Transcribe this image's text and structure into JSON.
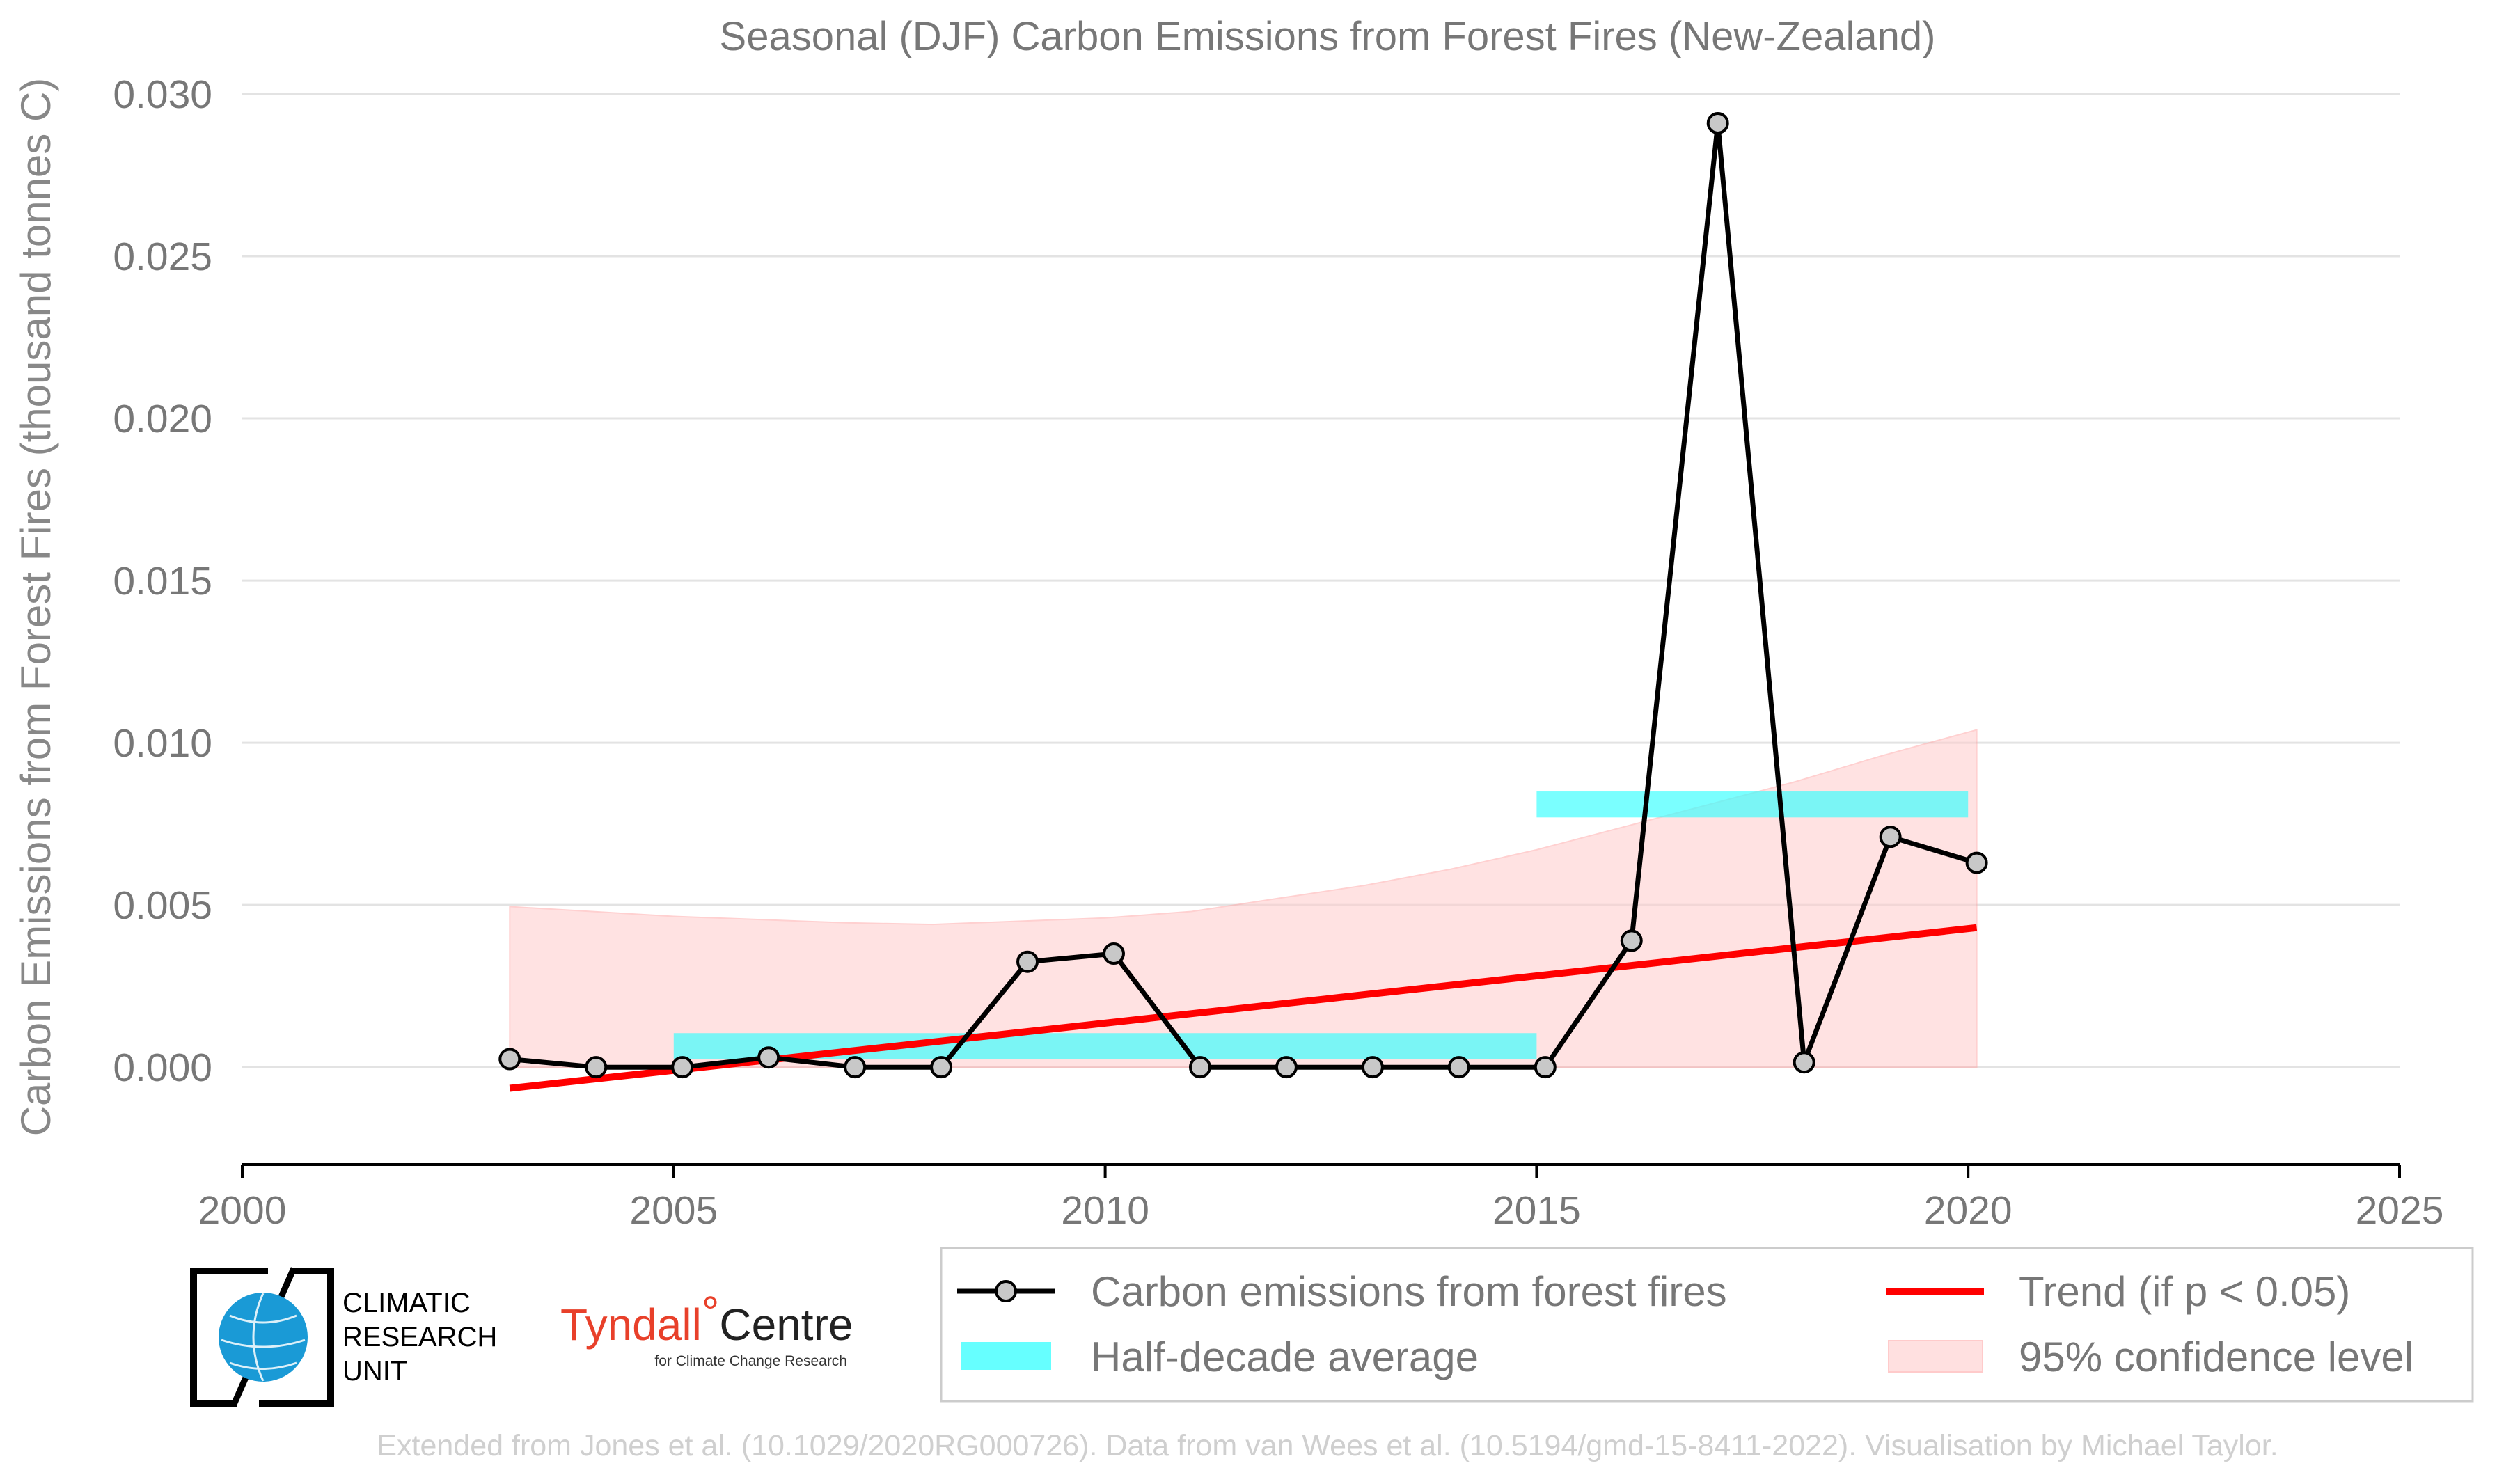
{
  "chart_data": {
    "type": "line",
    "title": "Seasonal (DJF) Carbon Emissions from Forest Fires (New-Zealand)",
    "xlabel": "",
    "ylabel": "Carbon Emissions from Forest Fires (thousand tonnes C)",
    "xlim": [
      2000,
      2025
    ],
    "ylim": [
      -0.003,
      0.03
    ],
    "x_ticks": [
      "2000",
      "2005",
      "2010",
      "2015",
      "2020",
      "2025"
    ],
    "y_ticks": [
      "0.000",
      "0.005",
      "0.010",
      "0.015",
      "0.020",
      "0.025",
      "0.030"
    ],
    "grid": "horizontal",
    "legend_position": "bottom-right",
    "series": [
      {
        "name": "Carbon emissions from forest fires",
        "type": "line-markers",
        "color": "#000000",
        "marker_fill": "#c8c8c8",
        "x": [
          2003.1,
          2004.1,
          2005.1,
          2006.1,
          2007.1,
          2008.1,
          2009.1,
          2010.1,
          2011.1,
          2012.1,
          2013.1,
          2014.1,
          2015.1,
          2016.1,
          2017.1,
          2018.1,
          2019.1,
          2020.1
        ],
        "y": [
          0.00025,
          0.0,
          0.0,
          0.0003,
          0.0,
          0.0,
          0.00325,
          0.0035,
          0.0,
          0.0,
          0.0,
          0.0,
          0.0,
          0.0039,
          0.0291,
          0.00015,
          0.0071,
          0.0063
        ]
      },
      {
        "name": "Half-decade average",
        "type": "bar-band",
        "color": "#33ffff",
        "segments": [
          {
            "x0": 2005,
            "x1": 2015,
            "y0": 0.00025,
            "y1": 0.00105
          },
          {
            "x0": 2015,
            "x1": 2020,
            "y0": 0.0077,
            "y1": 0.0085
          }
        ]
      },
      {
        "name": "Trend (if p < 0.05)",
        "type": "line",
        "color": "#ff0000",
        "x": [
          2003.1,
          2020.1
        ],
        "y": [
          -0.00065,
          0.0043
        ]
      },
      {
        "name": "95% confidence level",
        "type": "band",
        "color": "#ffcccc",
        "x": [
          2003.1,
          2005,
          2007,
          2008,
          2009,
          2010,
          2011,
          2012,
          2013,
          2014,
          2015,
          2016,
          2017,
          2018,
          2019,
          2020.1
        ],
        "upper": [
          0.00495,
          0.00465,
          0.00445,
          0.0044,
          0.0045,
          0.0046,
          0.0048,
          0.0052,
          0.0056,
          0.0061,
          0.0067,
          0.0074,
          0.0081,
          0.0088,
          0.0096,
          0.0104
        ],
        "lower": [
          0.0,
          0.0,
          0.0,
          0.0,
          0.0,
          0.0,
          0.0,
          0.0,
          0.0,
          0.0,
          0.0,
          0.0,
          0.0,
          0.0,
          0.0,
          0.0
        ]
      }
    ]
  },
  "logos": {
    "cru_lines": [
      "CLIMATIC",
      "RESEARCH",
      "UNIT"
    ],
    "tyndall_name": "Tyndall",
    "tyndall_degree": "°",
    "tyndall_centre": "Centre",
    "tyndall_sub": "for Climate Change Research"
  },
  "credits": "Extended from Jones et al. (10.1029/2020RG000726). Data from van Wees et al. (10.5194/gmd-15-8411-2022). Visualisation by Michael Taylor."
}
